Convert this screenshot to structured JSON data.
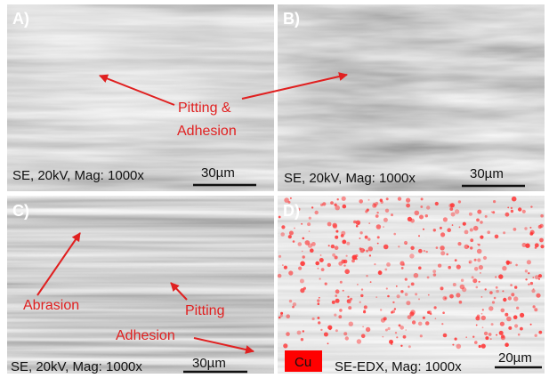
{
  "panels": [
    {
      "label": "A)",
      "caption": "SE, 20kV, Mag: 1000x",
      "scale_bar": "30µm",
      "annotations": [
        "Pitting &",
        "Adhesion"
      ]
    },
    {
      "label": "B)",
      "caption": "SE, 20kV, Mag: 1000x",
      "scale_bar": "30µm",
      "annotations": []
    },
    {
      "label": "C)",
      "caption": "SE, 20kV, Mag: 1000x",
      "scale_bar": "30µm",
      "annotations": [
        "Abrasion",
        "Pitting",
        "Adhesion"
      ]
    },
    {
      "label": "D)",
      "caption": "SE-EDX, Mag: 1000x",
      "scale_bar": "20µm",
      "annotations": [],
      "legend": "Cu"
    }
  ]
}
